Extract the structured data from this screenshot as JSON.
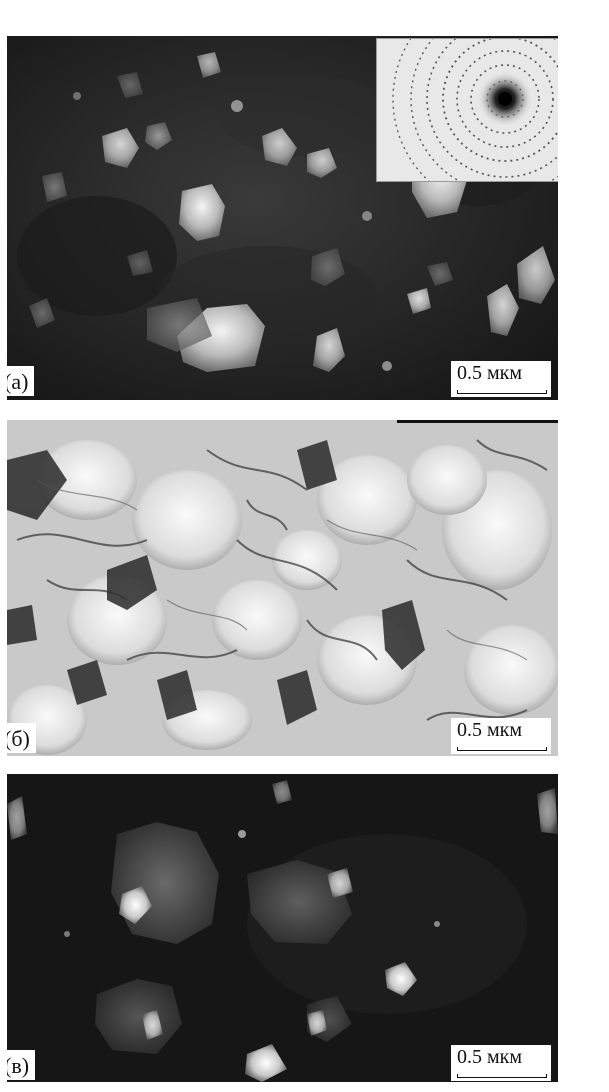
{
  "panels": [
    {
      "label": "(а)",
      "scale_text": "0.5 мкм",
      "style": "dark-field",
      "has_diffraction_inset": true
    },
    {
      "label": "(б)",
      "scale_text": "0.5 мкм",
      "style": "bright-field",
      "has_diffraction_inset": false
    },
    {
      "label": "(в)",
      "scale_text": "0.5 мкм",
      "style": "dark-field",
      "has_diffraction_inset": false
    }
  ]
}
